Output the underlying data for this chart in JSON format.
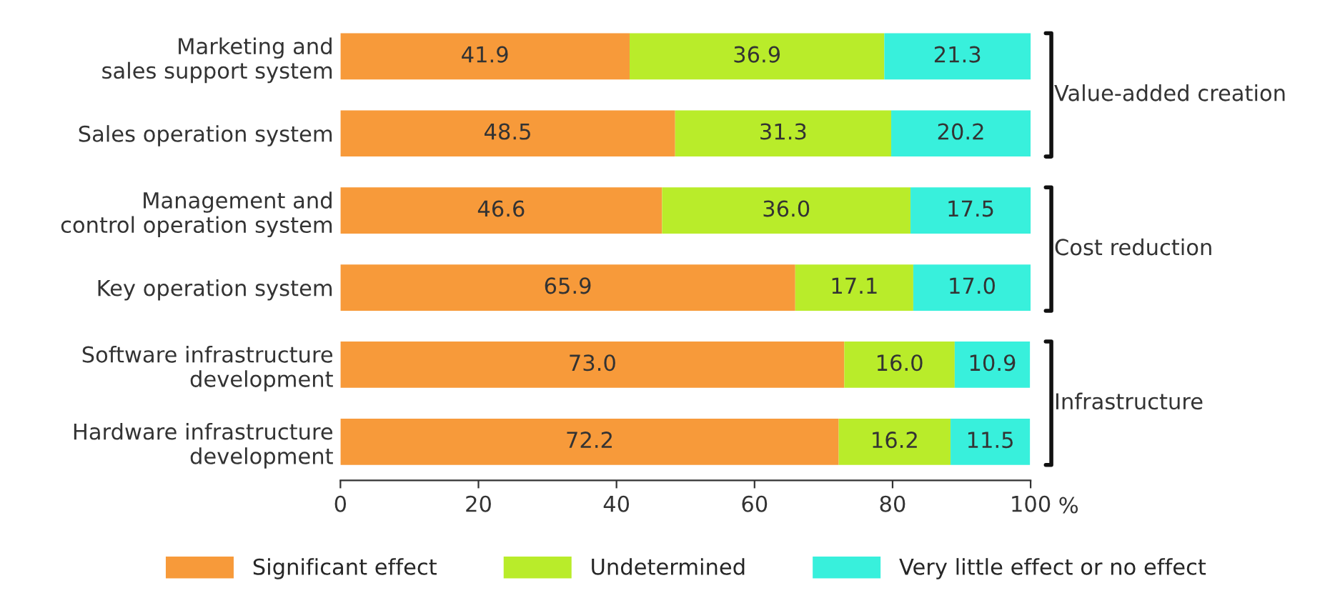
{
  "chart_data": {
    "type": "bar",
    "orientation": "horizontal",
    "stacked": true,
    "categories": [
      "Marketing and\nsales support system",
      "Sales operation system",
      "Management and\ncontrol operation system",
      "Key operation system",
      "Software infrastructure\ndevelopment",
      "Hardware infrastructure\ndevelopment"
    ],
    "series": [
      {
        "name": "Significant effect",
        "color": "#f79a3a",
        "values": [
          41.9,
          48.5,
          46.6,
          65.9,
          73.0,
          72.2
        ],
        "value_labels": [
          "41.9",
          "48.5",
          "46.6",
          "65.9",
          "73.0",
          "72.2"
        ]
      },
      {
        "name": "Undetermined",
        "color": "#b9ec2a",
        "values": [
          36.9,
          31.3,
          36.0,
          17.1,
          16.0,
          16.2
        ],
        "value_labels": [
          "36.9",
          "31.3",
          "36.0",
          "17.1",
          "16.0",
          "16.2"
        ]
      },
      {
        "name": "Very little effect or no effect",
        "color": "#38f0dc",
        "values": [
          21.3,
          20.2,
          17.5,
          17.0,
          10.9,
          11.5
        ],
        "value_labels": [
          "21.3",
          "20.2",
          "17.5",
          "17.0",
          "10.9",
          "11.5"
        ]
      }
    ],
    "xlim": [
      0,
      100
    ],
    "xticks": [
      0,
      20,
      40,
      60,
      80,
      100
    ],
    "xlabel": "%",
    "annotations": [
      "Value-added creation",
      "Cost reduction",
      "Infrastructure"
    ],
    "legend": "bottom",
    "grid": false
  }
}
